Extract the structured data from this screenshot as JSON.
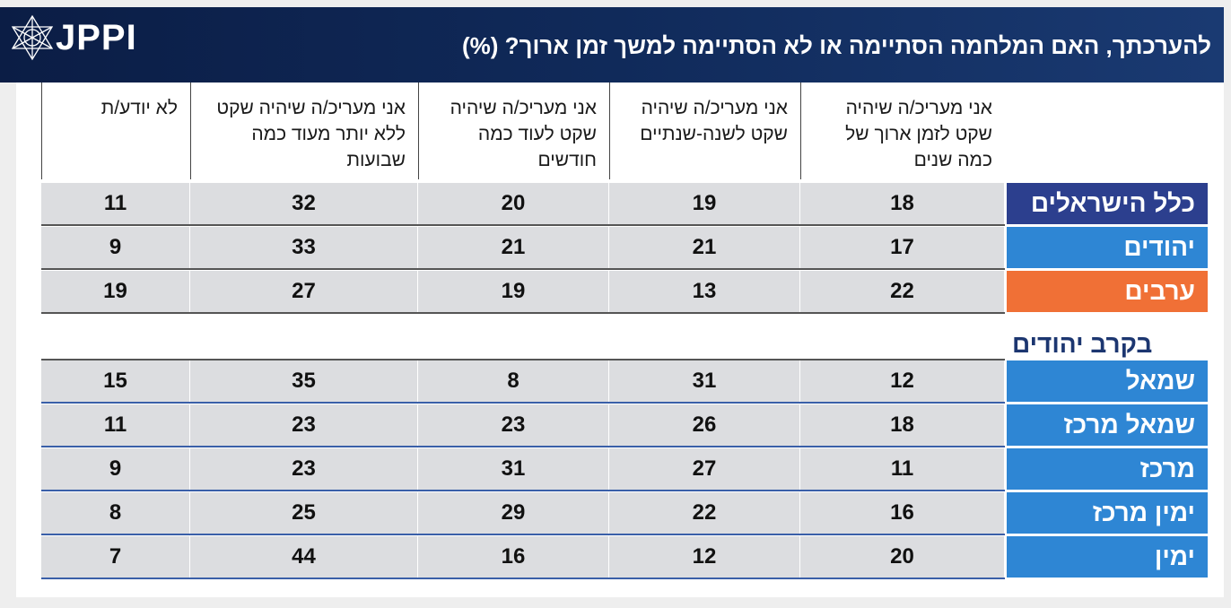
{
  "header": {
    "logo_text": "JPPI",
    "title": "להערכתך, האם המלחמה הסתיימה או לא הסתיימה למשך זמן ארוך? (%)"
  },
  "colors": {
    "header_bg": "#102a5a",
    "all_israelis": "#2c3f8e",
    "jews": "#2e86d4",
    "arabs": "#f07036",
    "subgroup": "#2e86d4",
    "cell_bg": "#dcdde0"
  },
  "chart_data": {
    "type": "table",
    "title": "להערכתך, האם המלחמה הסתיימה או לא הסתיימה למשך זמן ארוך? (%)",
    "columns": [
      "אני מעריכ/ה שיהיה שקט לזמן ארוך של כמה שנים",
      "אני מעריכ/ה שיהיה שקט לשנה-שנתיים",
      "אני מעריכ/ה שיהיה שקט לעוד כמה חודשים",
      "אני מעריכ/ה שיהיה שקט ללא יותר מעוד כמה שבועות",
      "לא יודע/ת"
    ],
    "section_label": "בקרב יהודים",
    "rows": [
      {
        "label": "כלל הישראלים",
        "values": [
          18,
          19,
          20,
          32,
          11
        ]
      },
      {
        "label": "יהודים",
        "values": [
          17,
          21,
          21,
          33,
          9
        ]
      },
      {
        "label": "ערבים",
        "values": [
          22,
          13,
          19,
          27,
          19
        ]
      },
      {
        "label": "שמאל",
        "values": [
          12,
          31,
          8,
          35,
          15
        ]
      },
      {
        "label": "שמאל מרכז",
        "values": [
          18,
          26,
          23,
          23,
          11
        ]
      },
      {
        "label": "מרכז",
        "values": [
          11,
          27,
          31,
          23,
          9
        ]
      },
      {
        "label": "ימין מרכז",
        "values": [
          16,
          22,
          29,
          25,
          8
        ]
      },
      {
        "label": "ימין",
        "values": [
          20,
          12,
          16,
          44,
          7
        ]
      }
    ]
  }
}
